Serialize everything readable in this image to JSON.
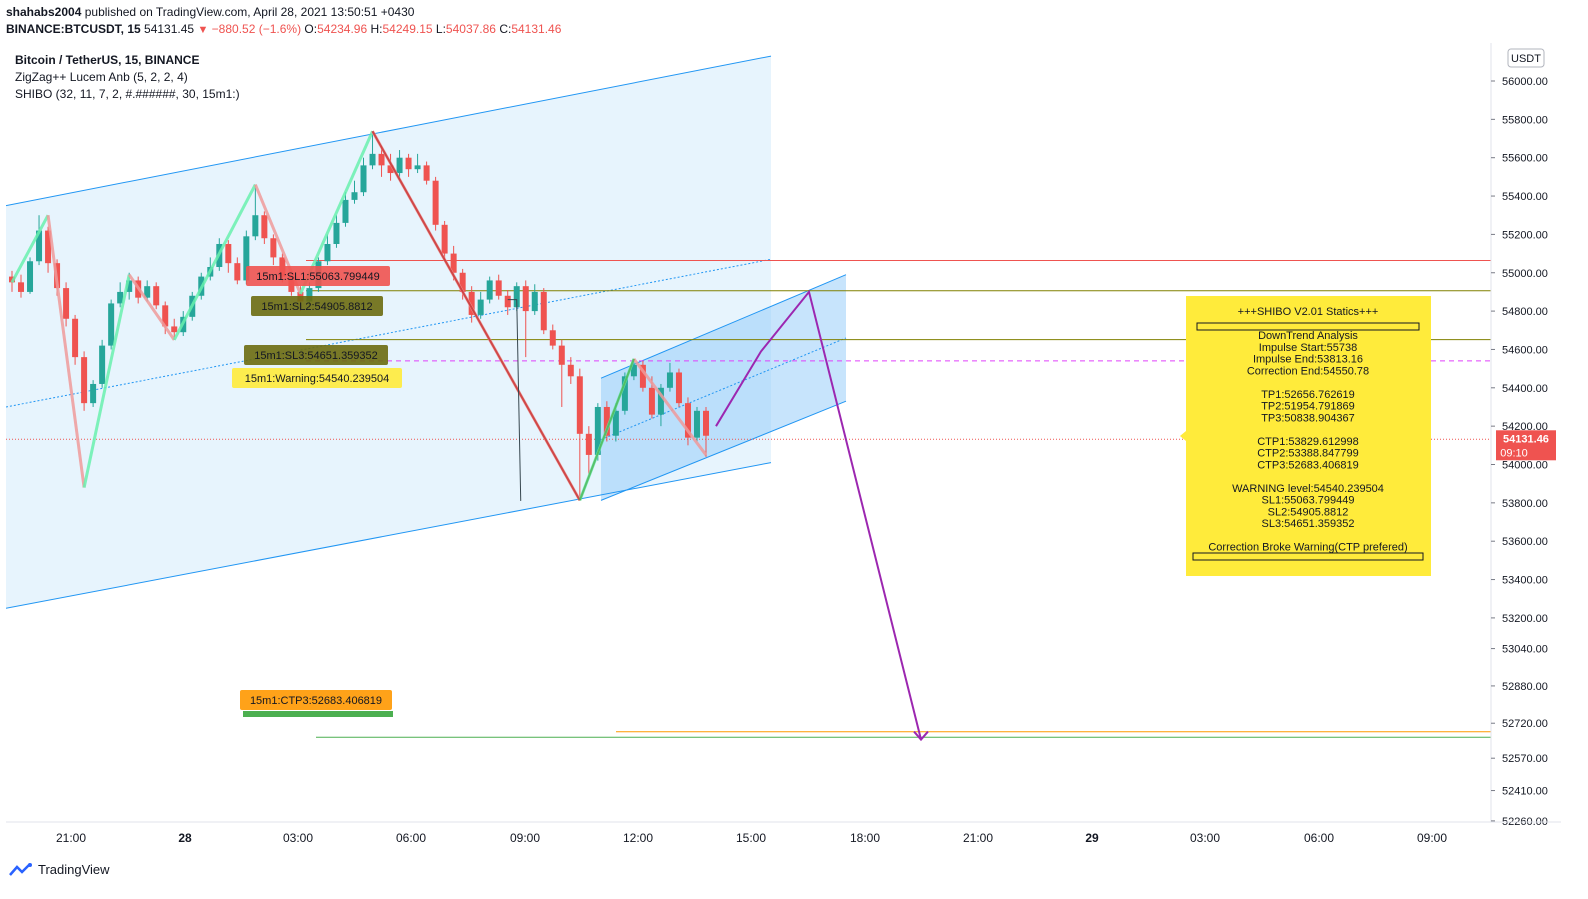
{
  "header": {
    "author": "shahabs2004",
    "published_text": "published on TradingView.com, April 28, 2021 13:50:51 +0430",
    "symbol_line": "BINANCE:BTCUSDT, 15",
    "last_price": "54131.45",
    "change": "−880.52 (−1.6%)",
    "open_label": "O:",
    "open": "54234.96",
    "high_label": "H:",
    "high": "54249.15",
    "low_label": "L:",
    "low": "54037.86",
    "close_label": "C:",
    "close": "54131.46"
  },
  "legend": {
    "title": "Bitcoin / TetherUS, 15, BINANCE",
    "indicator1": "ZigZag++ Lucem Anb (5, 2, 2, 4)",
    "indicator2": "SHIBO (32, 11, 7, 2, #.######, 30, 15m1:)"
  },
  "price_axis": {
    "currency": "USDT",
    "ticks": [
      56000,
      55800,
      55600,
      55400,
      55200,
      55000,
      54800,
      54600,
      54400,
      54200,
      54000,
      53800,
      53600,
      53400,
      53200,
      53040,
      52880,
      52720,
      52570,
      52410,
      52260
    ],
    "last_price_label": "54131.46",
    "countdown": "09:10"
  },
  "time_axis": {
    "labels": [
      "21:00",
      "28",
      "03:00",
      "06:00",
      "09:00",
      "12:00",
      "15:00",
      "18:00",
      "21:00",
      "29",
      "03:00",
      "06:00",
      "09:00"
    ]
  },
  "chart_data": {
    "type": "candlestick",
    "symbol": "BINANCE:BTCUSDT",
    "timeframe": "15",
    "price_range": [
      52100,
      56200
    ],
    "levels": [
      {
        "name": "SL1",
        "label": "15m1:SL1:55063.799449",
        "value": 55063.799449,
        "color": "#ef5350"
      },
      {
        "name": "SL2",
        "label": "15m1:SL2:54905.8812",
        "value": 54905.8812,
        "color": "#808000"
      },
      {
        "name": "SL3",
        "label": "15m1:SL3:54651.359352",
        "value": 54651.359352,
        "color": "#808000"
      },
      {
        "name": "Warning",
        "label": "15m1:Warning:54540.239504",
        "value": 54540.239504,
        "color": "#e040fb"
      },
      {
        "name": "CTP3",
        "label": "15m1:CTP3:52683.406819",
        "value": 52683.406819,
        "color": "#ff9800"
      }
    ],
    "zigzag_pivots": [
      54950,
      55300,
      53880,
      54990,
      54650,
      55460,
      54890,
      55738,
      53813.16,
      54550.78,
      54050
    ],
    "candles": [
      [
        54980,
        54950,
        55010,
        54900
      ],
      [
        54950,
        54900,
        54990,
        54870
      ],
      [
        54900,
        55060,
        55080,
        54890
      ],
      [
        55060,
        55220,
        55300,
        55040
      ],
      [
        55220,
        55050,
        55240,
        55000
      ],
      [
        55050,
        54920,
        55070,
        54880
      ],
      [
        54920,
        54760,
        54950,
        54720
      ],
      [
        54760,
        54560,
        54780,
        54520
      ],
      [
        54560,
        54320,
        54590,
        54280
      ],
      [
        54320,
        54420,
        54440,
        54300
      ],
      [
        54420,
        54620,
        54650,
        54400
      ],
      [
        54620,
        54840,
        54860,
        54600
      ],
      [
        54840,
        54900,
        54950,
        54820
      ],
      [
        54900,
        54960,
        55000,
        54860
      ],
      [
        54960,
        54870,
        54980,
        54840
      ],
      [
        54870,
        54930,
        54960,
        54850
      ],
      [
        54930,
        54830,
        54950,
        54810
      ],
      [
        54830,
        54720,
        54850,
        54680
      ],
      [
        54720,
        54690,
        54760,
        54650
      ],
      [
        54690,
        54770,
        54800,
        54670
      ],
      [
        54770,
        54880,
        54900,
        54750
      ],
      [
        54880,
        54980,
        55000,
        54860
      ],
      [
        54980,
        55030,
        55080,
        54960
      ],
      [
        55030,
        55150,
        55180,
        55010
      ],
      [
        55150,
        55050,
        55170,
        55000
      ],
      [
        55050,
        54960,
        55080,
        54940
      ],
      [
        54960,
        55190,
        55220,
        54940
      ],
      [
        55190,
        55300,
        55460,
        55170
      ],
      [
        55300,
        55180,
        55320,
        55150
      ],
      [
        55180,
        55080,
        55200,
        55040
      ],
      [
        55080,
        54980,
        55100,
        54950
      ],
      [
        54980,
        54900,
        55010,
        54880
      ],
      [
        54900,
        54850,
        54930,
        54800
      ],
      [
        54850,
        54920,
        54950,
        54820
      ],
      [
        54920,
        55060,
        55080,
        54900
      ],
      [
        55060,
        55150,
        55200,
        55040
      ],
      [
        55150,
        55260,
        55300,
        55130
      ],
      [
        55260,
        55380,
        55420,
        55240
      ],
      [
        55380,
        55420,
        55480,
        55360
      ],
      [
        55420,
        55560,
        55600,
        55400
      ],
      [
        55560,
        55620,
        55738,
        55540
      ],
      [
        55620,
        55560,
        55660,
        55500
      ],
      [
        55560,
        55520,
        55620,
        55480
      ],
      [
        55520,
        55600,
        55640,
        55480
      ],
      [
        55600,
        55540,
        55620,
        55500
      ],
      [
        55540,
        55560,
        55620,
        55520
      ],
      [
        55560,
        55480,
        55580,
        55460
      ],
      [
        55480,
        55250,
        55500,
        55220
      ],
      [
        55250,
        55100,
        55270,
        55060
      ],
      [
        55100,
        55000,
        55140,
        54960
      ],
      [
        55000,
        54900,
        55020,
        54860
      ],
      [
        54900,
        54780,
        54930,
        54740
      ],
      [
        54780,
        54860,
        54900,
        54760
      ],
      [
        54860,
        54960,
        54980,
        54840
      ],
      [
        54960,
        54880,
        54990,
        54860
      ],
      [
        54880,
        54820,
        54910,
        54780
      ],
      [
        54820,
        54930,
        54950,
        54800
      ],
      [
        54930,
        54800,
        54960,
        54560
      ],
      [
        54800,
        54900,
        54940,
        54780
      ],
      [
        54900,
        54700,
        54920,
        54680
      ],
      [
        54700,
        54620,
        54730,
        54600
      ],
      [
        54620,
        54520,
        54650,
        54300
      ],
      [
        54520,
        54460,
        54560,
        54420
      ],
      [
        54460,
        54160,
        54500,
        53813.16
      ],
      [
        54160,
        54050,
        54200,
        53950
      ],
      [
        54050,
        54300,
        54320,
        54020
      ],
      [
        54300,
        54150,
        54330,
        54120
      ],
      [
        54150,
        54280,
        54320,
        54120
      ],
      [
        54280,
        54460,
        54480,
        54260
      ],
      [
        54460,
        54520,
        54550,
        54440
      ],
      [
        54520,
        54400,
        54540,
        54380
      ],
      [
        54400,
        54260,
        54460,
        54240
      ],
      [
        54260,
        54400,
        54420,
        54200
      ],
      [
        54400,
        54480,
        54530,
        54380
      ],
      [
        54480,
        54320,
        54500,
        54300
      ],
      [
        54320,
        54140,
        54350,
        54100
      ],
      [
        54140,
        54280,
        54300,
        54120
      ],
      [
        54280,
        54150,
        54300,
        54040
      ]
    ],
    "channels": [
      {
        "name": "large-channel",
        "upper": [
          [
            0,
            55350
          ],
          [
            765,
            56130
          ]
        ],
        "lower": [
          [
            0,
            53250
          ],
          [
            765,
            54010
          ]
        ],
        "mid": [
          [
            0,
            54300
          ],
          [
            765,
            55070
          ]
        ]
      },
      {
        "name": "small-channel",
        "upper": [
          [
            595,
            54450
          ],
          [
            840,
            54990
          ]
        ],
        "lower": [
          [
            595,
            53813
          ],
          [
            840,
            54330
          ]
        ],
        "mid": [
          [
            595,
            54130
          ],
          [
            840,
            54660
          ]
        ]
      }
    ],
    "projection": [
      [
        54200,
        0
      ],
      [
        54590,
        1
      ],
      [
        54900,
        2
      ],
      [
        52650,
        3
      ]
    ]
  },
  "stats_box": {
    "title": "+++SHIBO V2.01 Statics+++",
    "lines": [
      "DownTrend Analysis",
      "Impulse Start:55738",
      "Impulse End:53813.16",
      "Correction End:54550.78",
      "",
      "TP1:52656.762619",
      "TP2:51954.791869",
      "TP3:50838.904367",
      "",
      "CTP1:53829.612998",
      "CTP2:53388.847799",
      "CTP3:52683.406819",
      "",
      "WARNING level:54540.239504",
      "SL1:55063.799449",
      "SL2:54905.8812",
      "SL3:54651.359352",
      "",
      "Correction Broke Warning(CTP prefered)"
    ]
  },
  "footer": {
    "brand": "TradingView"
  },
  "colors": {
    "up": "#26a69a",
    "down": "#ef5350",
    "zigzag_up": "#69f0ae",
    "zigzag_down": "#ef9a9a",
    "channel": "#2196f3",
    "projection": "#9c27b0",
    "stats_bg": "#ffeb3b"
  }
}
